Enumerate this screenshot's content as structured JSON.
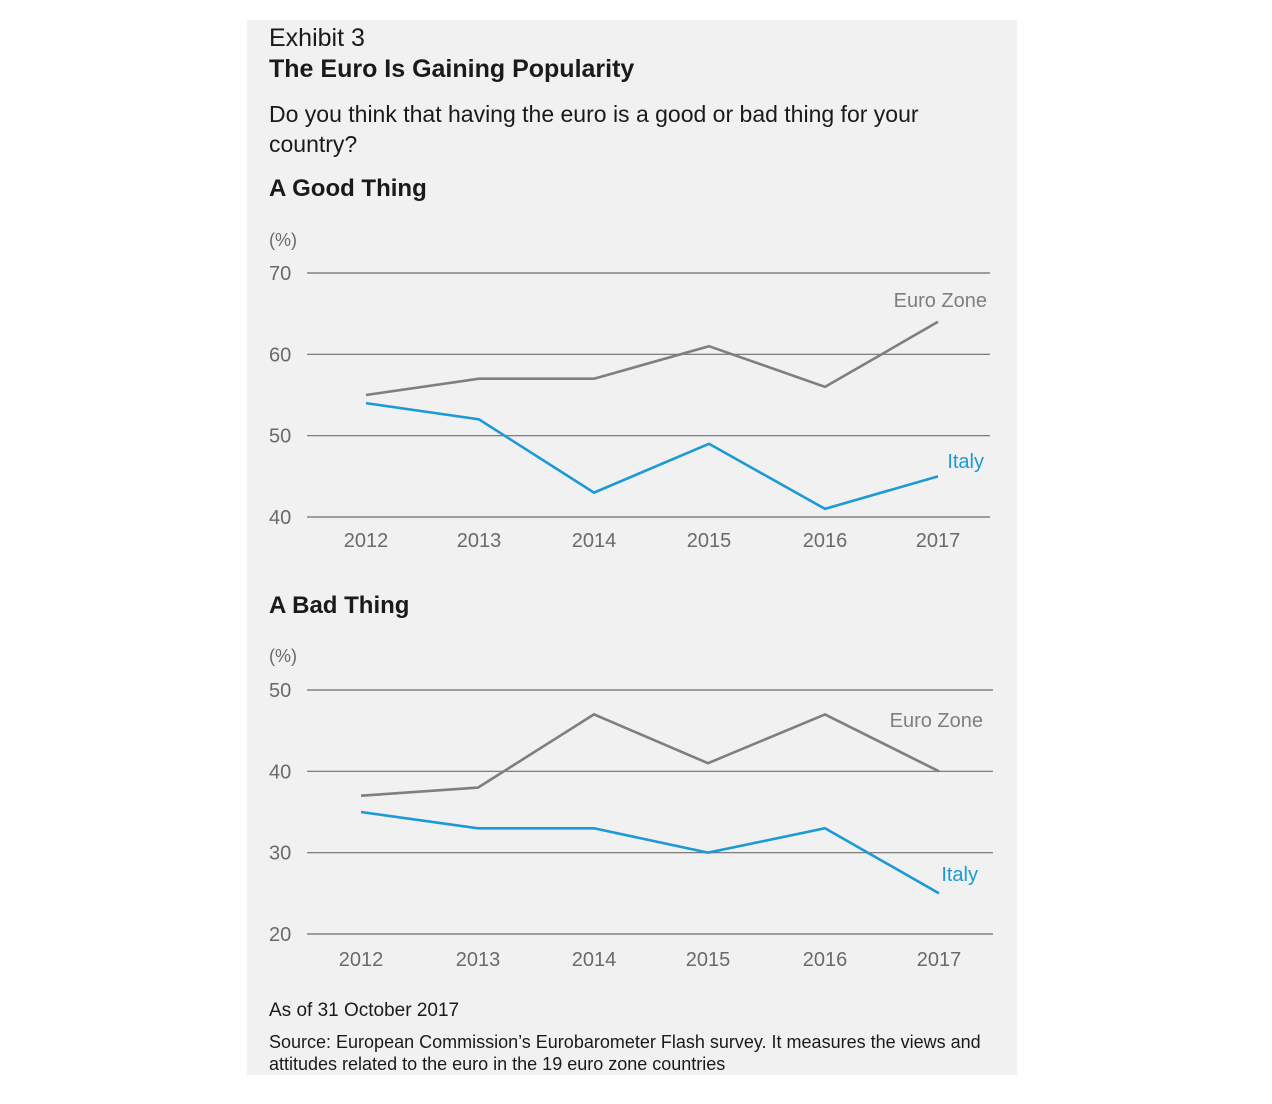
{
  "exhibit": "Exhibit 3",
  "title": "The Euro Is Gaining Popularity",
  "question": "Do you think that having the euro is a good or bad thing for your country?",
  "as_of": "As of 31 October 2017",
  "source": "Source: European Commission’s Eurobarometer Flash survey. It measures the views and attitudes related to the euro in the 19 euro zone countries",
  "colors": {
    "euro_zone": "#7f7f7f",
    "italy": "#1b9ad6",
    "grid": "#6d6d6d",
    "tick_text": "#6a6a6a"
  },
  "chart_data": [
    {
      "type": "line",
      "title": "A Good Thing",
      "unit": "(%)",
      "x": [
        "2012",
        "2013",
        "2014",
        "2015",
        "2016",
        "2017"
      ],
      "ylim": [
        40,
        70
      ],
      "yticks": [
        40,
        50,
        60,
        70
      ],
      "grid": true,
      "series": [
        {
          "name": "Euro Zone",
          "values": [
            55,
            57,
            57,
            61,
            56,
            64
          ],
          "color": "#7f7f7f"
        },
        {
          "name": "Italy",
          "values": [
            54,
            52,
            43,
            49,
            41,
            45
          ],
          "color": "#1b9ad6"
        }
      ]
    },
    {
      "type": "line",
      "title": "A Bad Thing",
      "unit": "(%)",
      "x": [
        "2012",
        "2013",
        "2014",
        "2015",
        "2016",
        "2017"
      ],
      "ylim": [
        20,
        50
      ],
      "yticks": [
        20,
        30,
        40,
        50
      ],
      "grid": true,
      "series": [
        {
          "name": "Euro Zone",
          "values": [
            37,
            38,
            47,
            41,
            47,
            40
          ],
          "color": "#7f7f7f"
        },
        {
          "name": "Italy",
          "values": [
            35,
            33,
            33,
            30,
            33,
            25
          ],
          "color": "#1b9ad6"
        }
      ]
    }
  ]
}
